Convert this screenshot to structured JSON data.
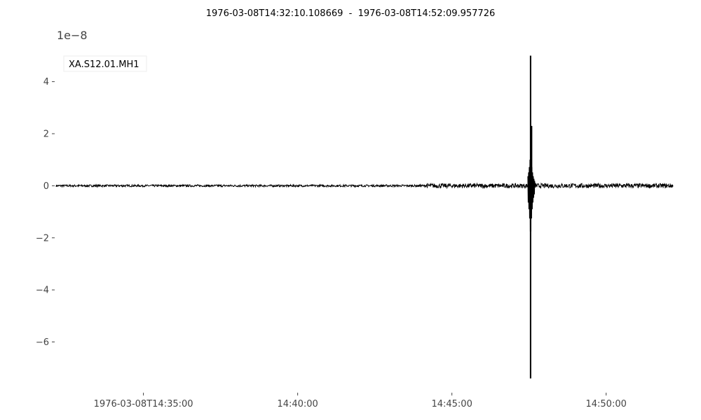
{
  "chart_data": {
    "type": "line",
    "title": "1976-03-08T14:32:10.108669  -  1976-03-08T14:52:09.957726",
    "t_start": "1976-03-08T14:32:10.108669",
    "t_end": "1976-03-08T14:52:09.957726",
    "y_exponent_label": "1e−8",
    "y_scale": 1e-08,
    "ylim": [
      -7.6,
      5.2
    ],
    "y_ticks": [
      -6,
      -4,
      -2,
      0,
      2,
      4
    ],
    "y_tick_labels": [
      "−6",
      "−4",
      "−2",
      "0",
      "2",
      "4"
    ],
    "x_ticks": [
      "1976-03-08T14:35:00",
      "1976-03-08T14:40:00",
      "1976-03-08T14:45:00",
      "1976-03-08T14:50:00"
    ],
    "x_tick_labels": [
      "1976-03-08T14:35:00",
      "14:40:00",
      "14:45:00",
      "14:50:00"
    ],
    "legend_position": "top-left",
    "grid": false,
    "series": [
      {
        "name": "XA.S12.01.MH1",
        "color": "#000000",
        "events": [
          {
            "time": "1976-03-08T14:37:31",
            "amplitude": 0.05
          },
          {
            "time": "1976-03-08T14:47:33",
            "min": -7.4,
            "max": 5.0
          },
          {
            "time": "1976-03-08T14:47:35",
            "min": -0.8,
            "max": 2.3
          }
        ],
        "noise_amplitude": 0.04
      }
    ]
  }
}
